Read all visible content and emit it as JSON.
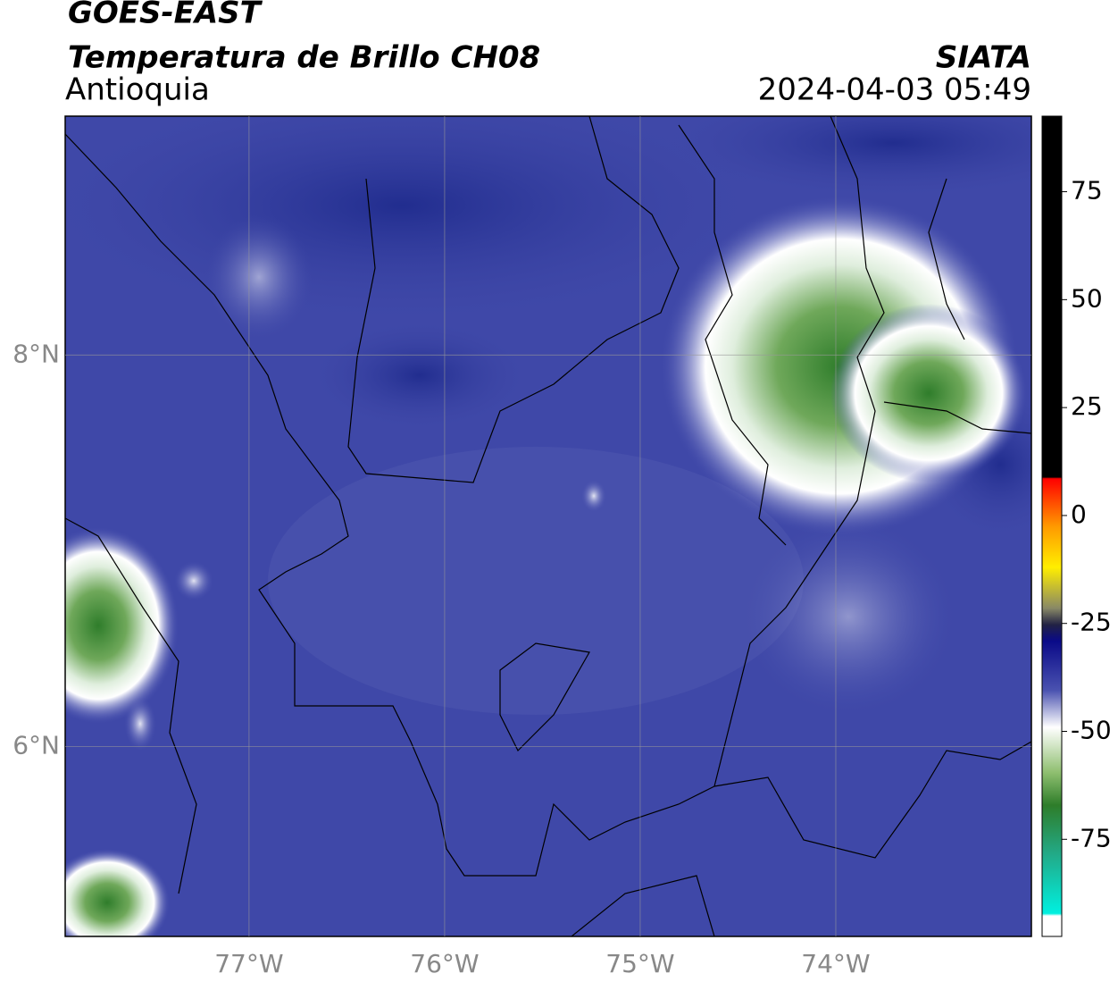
{
  "map": {
    "title": "GOES-EAST",
    "subtitle": "Temperatura de Brillo CH08",
    "region": "Antioquia",
    "source": "SIATA",
    "datetime": "2024-04-03 05:49",
    "xlim": [
      -77.94,
      -73.0
    ],
    "ylim": [
      5.03,
      9.22
    ],
    "xticks": [
      {
        "value": -77,
        "label": "77°W"
      },
      {
        "value": -76,
        "label": "76°W"
      },
      {
        "value": -75,
        "label": "75°W"
      },
      {
        "value": -74,
        "label": "74°W"
      }
    ],
    "yticks": [
      {
        "value": 6,
        "label": "6°N"
      },
      {
        "value": 8,
        "label": "8°N"
      }
    ],
    "grid": true
  },
  "colorbar": {
    "lim": [
      -97.5,
      92.5
    ],
    "ticks": [
      75,
      50,
      25,
      0,
      -25,
      -50,
      -75
    ]
  }
}
